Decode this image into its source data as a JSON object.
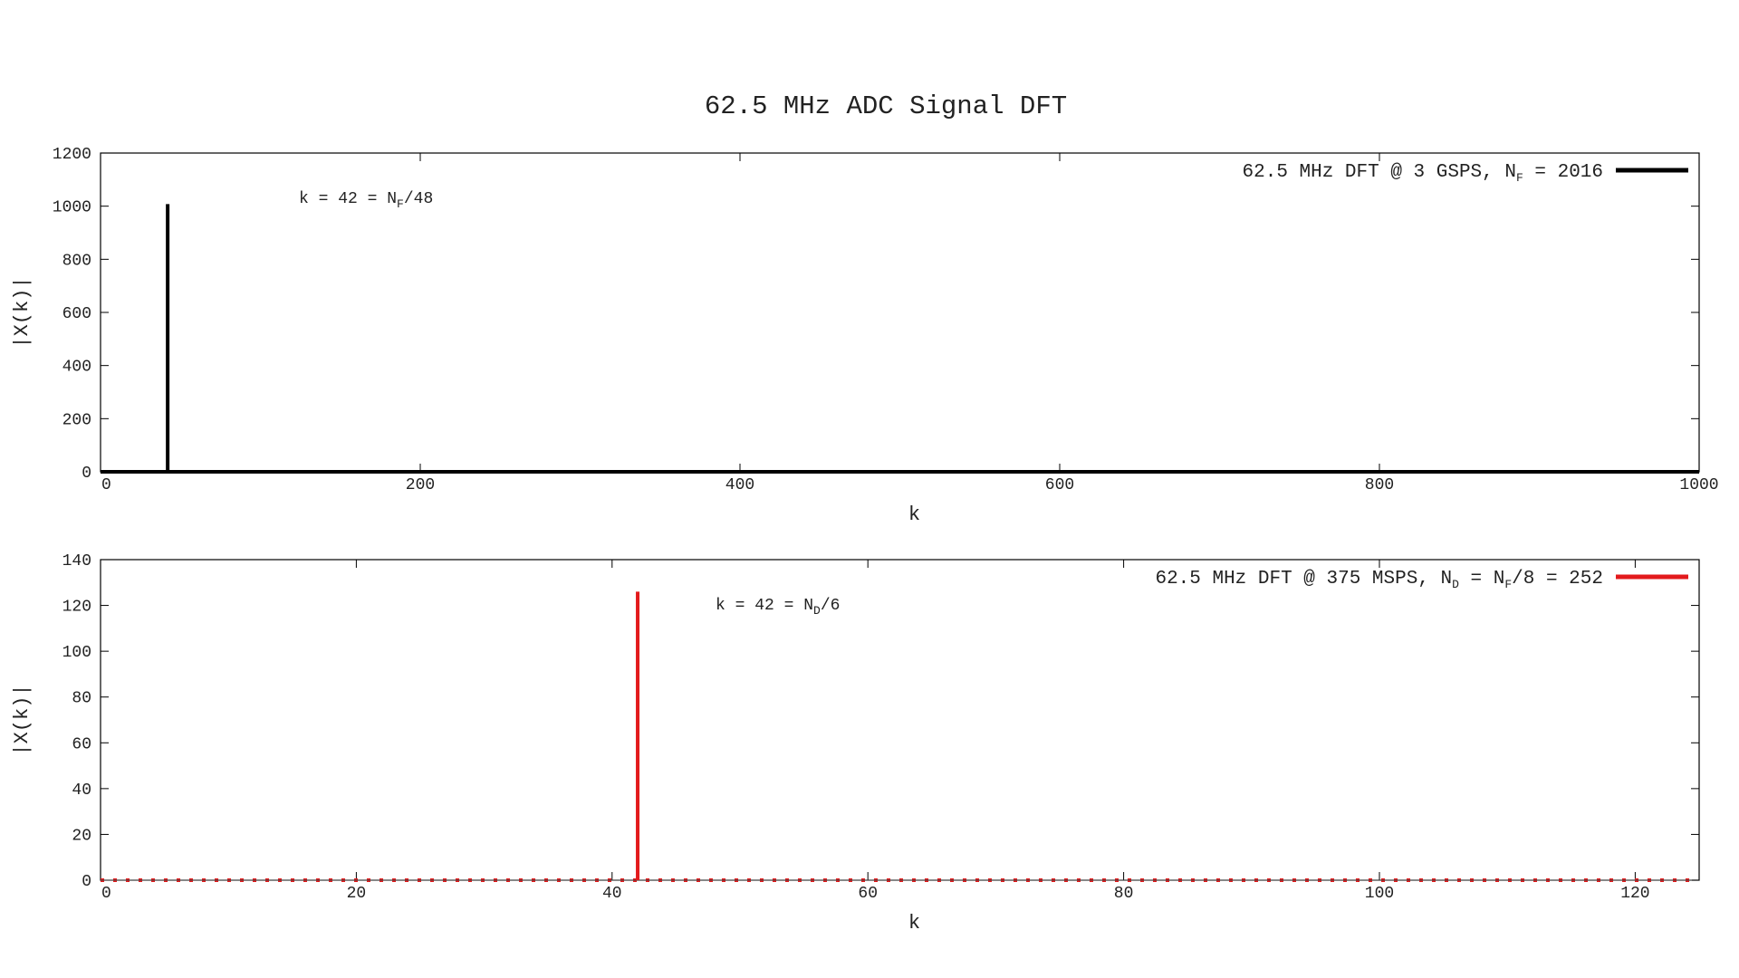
{
  "figure_title": "62.5 MHz ADC Signal DFT",
  "chart_data": [
    {
      "type": "line",
      "xlabel": "k",
      "ylabel": "|X(k)|",
      "xlim": [
        0,
        1000
      ],
      "ylim": [
        0,
        1200
      ],
      "xticks": [
        0,
        200,
        400,
        600,
        800,
        1000
      ],
      "yticks": [
        0,
        200,
        400,
        600,
        800,
        1000,
        1200
      ],
      "grid": false,
      "legend_position": "top-right",
      "legend": {
        "prefix": "62.5 MHz DFT @ 3 GSPS, N",
        "sub": "F",
        "suffix": " = 2016"
      },
      "annotation": {
        "prefix": "k = 42 = N",
        "sub": "F",
        "suffix": "/48"
      },
      "series": [
        {
          "color": "#000000",
          "baseline": 0,
          "peaks": [
            {
              "k": 42,
              "value": 1008
            }
          ]
        }
      ]
    },
    {
      "type": "line",
      "xlabel": "k",
      "ylabel": "|X(k)|",
      "xlim": [
        0,
        125
      ],
      "ylim": [
        0,
        140
      ],
      "xticks": [
        0,
        20,
        40,
        60,
        80,
        100,
        120
      ],
      "yticks": [
        0,
        20,
        40,
        60,
        80,
        100,
        120,
        140
      ],
      "grid": false,
      "legend_position": "top-right",
      "legend": {
        "prefix": "62.5 MHz DFT @ 375 MSPS, N",
        "sub": "D",
        "suffix": " = N",
        "sub2": "F",
        "suffix2": "/8 = 252"
      },
      "annotation": {
        "prefix": "k = 42 = N",
        "sub": "D",
        "suffix": "/6"
      },
      "series": [
        {
          "color": "#e31a1c",
          "baseline": 0,
          "points_style": "dotted baseline",
          "peaks": [
            {
              "k": 42,
              "value": 126
            }
          ]
        }
      ]
    }
  ]
}
